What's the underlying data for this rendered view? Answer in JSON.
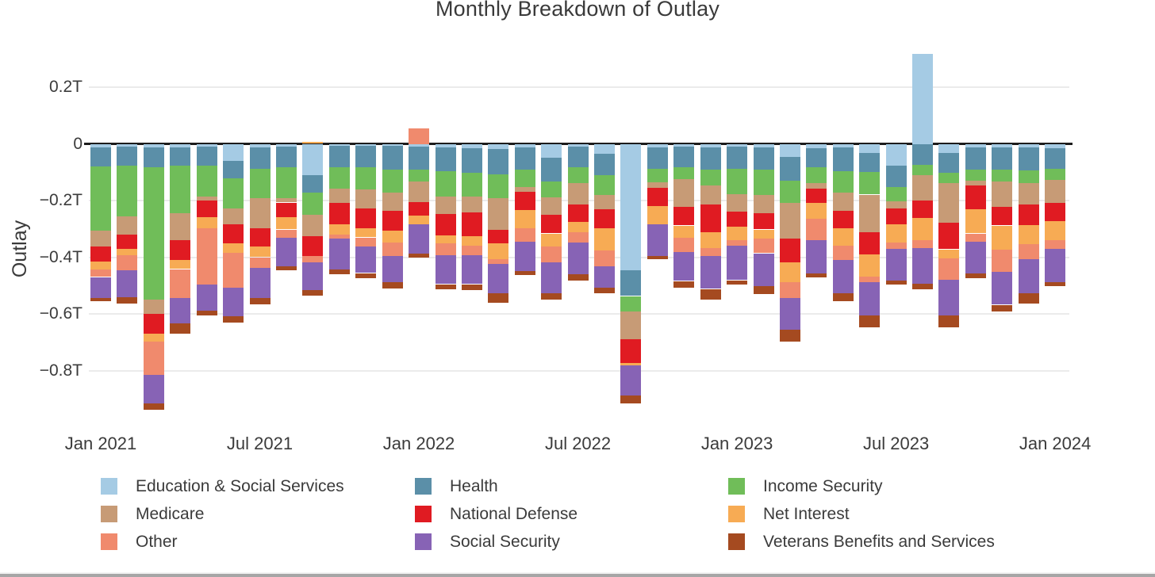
{
  "title": "Monthly Breakdown of Outlay",
  "y_axis": {
    "label": "Outlay",
    "ticks": [
      {
        "label": "0.2T",
        "value": 0.2
      },
      {
        "label": "0",
        "value": 0
      },
      {
        "label": "−0.2T",
        "value": -0.2
      },
      {
        "label": "−0.4T",
        "value": -0.4
      },
      {
        "label": "−0.6T",
        "value": -0.6
      },
      {
        "label": "−0.8T",
        "value": -0.8
      }
    ]
  },
  "x_axis": {
    "ticks": [
      "Jan 2021",
      "Jul 2021",
      "Jan 2022",
      "Jul 2022",
      "Jan 2023",
      "Jul 2023",
      "Jan 2024"
    ]
  },
  "colors": {
    "grid": "#ebebeb",
    "zero_line": "#1c1c1c",
    "text": "#3b3b3b",
    "background": "#ffffff"
  },
  "chart_data": {
    "type": "bar",
    "stacked": true,
    "title": "Monthly Breakdown of Outlay",
    "xlabel": "",
    "ylabel": "Outlay",
    "unit": "trillions of dollars",
    "ylim": [
      -0.95,
      0.35
    ],
    "grid": true,
    "legend_position": "bottom",
    "categories": [
      "Jan 2021",
      "Feb 2021",
      "Mar 2021",
      "Apr 2021",
      "May 2021",
      "Jun 2021",
      "Jul 2021",
      "Aug 2021",
      "Sep 2021",
      "Oct 2021",
      "Nov 2021",
      "Dec 2021",
      "Jan 2022",
      "Feb 2022",
      "Mar 2022",
      "Apr 2022",
      "May 2022",
      "Jun 2022",
      "Jul 2022",
      "Aug 2022",
      "Sep 2022",
      "Oct 2022",
      "Nov 2022",
      "Dec 2022",
      "Jan 2023",
      "Feb 2023",
      "Mar 2023",
      "Apr 2023",
      "May 2023",
      "Jun 2023",
      "Jul 2023",
      "Aug 2023",
      "Sep 2023",
      "Oct 2023",
      "Nov 2023",
      "Dec 2023",
      "Jan 2024"
    ],
    "series": [
      {
        "name": "Education & Social Services",
        "color": "#a5cbe4",
        "values": [
          -0.013,
          -0.011,
          -0.013,
          -0.013,
          -0.011,
          -0.06,
          -0.013,
          -0.011,
          -0.111,
          -0.008,
          -0.008,
          -0.008,
          -0.01,
          -0.013,
          -0.015,
          -0.018,
          -0.013,
          -0.05,
          -0.011,
          -0.036,
          -0.447,
          -0.013,
          -0.011,
          -0.013,
          -0.01,
          -0.013,
          -0.046,
          -0.015,
          -0.013,
          -0.032,
          -0.078,
          0.319,
          -0.032,
          -0.013,
          -0.013,
          -0.013,
          -0.015
        ]
      },
      {
        "name": "Health",
        "color": "#5b8fa8",
        "values": [
          -0.067,
          -0.065,
          -0.07,
          -0.065,
          -0.067,
          -0.062,
          -0.075,
          -0.072,
          -0.061,
          -0.075,
          -0.075,
          -0.084,
          -0.081,
          -0.084,
          -0.087,
          -0.089,
          -0.079,
          -0.084,
          -0.072,
          -0.075,
          -0.09,
          -0.075,
          -0.072,
          -0.079,
          -0.078,
          -0.079,
          -0.084,
          -0.068,
          -0.084,
          -0.067,
          -0.075,
          -0.074,
          -0.07,
          -0.079,
          -0.079,
          -0.08,
          -0.072
        ]
      },
      {
        "name": "Income Security",
        "color": "#70bd59",
        "values": [
          -0.227,
          -0.179,
          -0.466,
          -0.168,
          -0.107,
          -0.107,
          -0.103,
          -0.109,
          -0.079,
          -0.075,
          -0.079,
          -0.079,
          -0.042,
          -0.089,
          -0.084,
          -0.084,
          -0.061,
          -0.056,
          -0.056,
          -0.07,
          -0.054,
          -0.047,
          -0.042,
          -0.056,
          -0.089,
          -0.089,
          -0.079,
          -0.056,
          -0.075,
          -0.08,
          -0.051,
          -0.037,
          -0.037,
          -0.037,
          -0.042,
          -0.045,
          -0.04
        ]
      },
      {
        "name": "Medicare",
        "color": "#c79b76",
        "values": [
          -0.056,
          -0.065,
          -0.051,
          -0.095,
          -0.014,
          -0.054,
          -0.107,
          -0.015,
          -0.075,
          -0.051,
          -0.065,
          -0.065,
          -0.073,
          -0.061,
          -0.056,
          -0.112,
          -0.017,
          -0.061,
          -0.075,
          -0.051,
          -0.098,
          -0.019,
          -0.098,
          -0.065,
          -0.061,
          -0.065,
          -0.126,
          -0.019,
          -0.065,
          -0.132,
          -0.023,
          -0.089,
          -0.14,
          -0.019,
          -0.089,
          -0.077,
          -0.082
        ]
      },
      {
        "name": "National Defense",
        "color": "#e01b22",
        "values": [
          -0.053,
          -0.051,
          -0.07,
          -0.068,
          -0.061,
          -0.067,
          -0.065,
          -0.053,
          -0.07,
          -0.075,
          -0.07,
          -0.07,
          -0.047,
          -0.075,
          -0.084,
          -0.047,
          -0.063,
          -0.065,
          -0.061,
          -0.065,
          -0.084,
          -0.065,
          -0.065,
          -0.098,
          -0.054,
          -0.056,
          -0.084,
          -0.051,
          -0.061,
          -0.079,
          -0.056,
          -0.061,
          -0.093,
          -0.084,
          -0.065,
          -0.072,
          -0.063
        ]
      },
      {
        "name": "Net Interest",
        "color": "#f7ab54",
        "values": [
          -0.028,
          -0.023,
          -0.028,
          -0.033,
          -0.037,
          -0.035,
          -0.037,
          -0.042,
          0.008,
          -0.037,
          -0.033,
          -0.042,
          -0.03,
          -0.028,
          -0.033,
          -0.056,
          -0.065,
          -0.047,
          -0.037,
          -0.079,
          -0.009,
          -0.065,
          -0.042,
          -0.056,
          -0.049,
          -0.033,
          -0.07,
          -0.056,
          -0.061,
          -0.079,
          -0.065,
          -0.079,
          -0.033,
          -0.084,
          -0.084,
          -0.068,
          -0.068
        ]
      },
      {
        "name": "Other",
        "color": "#f08a6d",
        "values": [
          -0.026,
          -0.051,
          -0.116,
          -0.103,
          -0.2,
          -0.123,
          -0.037,
          -0.028,
          -0.023,
          -0.014,
          -0.033,
          -0.047,
          0.056,
          -0.042,
          -0.033,
          -0.019,
          -0.047,
          -0.056,
          -0.037,
          -0.056,
          0,
          0,
          -0.051,
          -0.028,
          -0.019,
          -0.051,
          -0.056,
          -0.075,
          -0.051,
          -0.019,
          -0.023,
          -0.028,
          -0.075,
          -0.028,
          -0.079,
          -0.053,
          -0.03
        ]
      },
      {
        "name": "Social Security",
        "color": "#8763b5",
        "values": [
          -0.073,
          -0.096,
          -0.103,
          -0.089,
          -0.093,
          -0.101,
          -0.107,
          -0.103,
          -0.098,
          -0.107,
          -0.093,
          -0.093,
          -0.104,
          -0.103,
          -0.103,
          -0.103,
          -0.103,
          -0.107,
          -0.112,
          -0.075,
          -0.107,
          -0.112,
          -0.103,
          -0.117,
          -0.121,
          -0.117,
          -0.112,
          -0.117,
          -0.117,
          -0.117,
          -0.112,
          -0.126,
          -0.126,
          -0.112,
          -0.117,
          -0.118,
          -0.119
        ]
      },
      {
        "name": "Veterans Benefits and Services",
        "color": "#a54a20",
        "values": [
          -0.013,
          -0.022,
          -0.023,
          -0.037,
          -0.016,
          -0.021,
          -0.021,
          -0.014,
          -0.019,
          -0.019,
          -0.019,
          -0.023,
          -0.015,
          -0.019,
          -0.021,
          -0.033,
          -0.014,
          -0.023,
          -0.023,
          -0.019,
          -0.028,
          -0.011,
          -0.023,
          -0.037,
          -0.014,
          -0.028,
          -0.042,
          -0.014,
          -0.028,
          -0.042,
          -0.014,
          -0.019,
          -0.042,
          -0.019,
          -0.023,
          -0.039,
          -0.014
        ]
      }
    ]
  }
}
